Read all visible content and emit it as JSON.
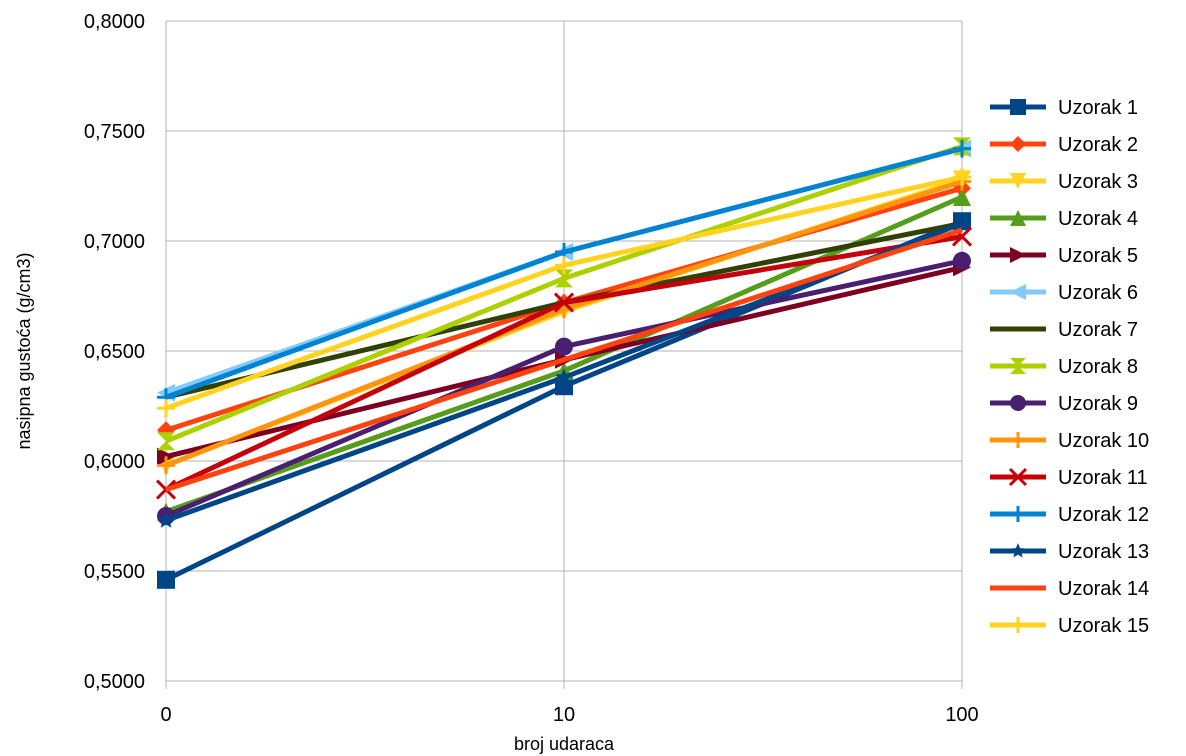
{
  "chart_data": {
    "type": "line",
    "title": "",
    "xlabel": "broj udaraca",
    "ylabel": "nasipna gustoća (g/cm3)",
    "categories": [
      "0",
      "10",
      "100"
    ],
    "ylim": [
      0.5,
      0.8
    ],
    "y_ticks": [
      "0,5000",
      "0,5500",
      "0,6000",
      "0,6500",
      "0,7000",
      "0,7500",
      "0,8000"
    ],
    "grid": true,
    "legend": "right",
    "series": [
      {
        "name": "Uzorak 1",
        "color": "#004586",
        "marker": "square",
        "values": [
          0.546,
          0.634,
          0.709
        ]
      },
      {
        "name": "Uzorak 2",
        "color": "#ff420e",
        "marker": "diamond",
        "values": [
          0.614,
          0.672,
          0.724
        ]
      },
      {
        "name": "Uzorak 3",
        "color": "#ffd320",
        "marker": "tri-down",
        "values": [
          0.598,
          0.668,
          0.728
        ]
      },
      {
        "name": "Uzorak 4",
        "color": "#579d1c",
        "marker": "tri-up",
        "values": [
          0.577,
          0.641,
          0.72
        ]
      },
      {
        "name": "Uzorak 5",
        "color": "#7e0021",
        "marker": "tri-right",
        "values": [
          0.602,
          0.646,
          0.688
        ]
      },
      {
        "name": "Uzorak 6",
        "color": "#83caff",
        "marker": "tri-left",
        "values": [
          0.631,
          0.695,
          0.742
        ]
      },
      {
        "name": "Uzorak 7",
        "color": "#314004",
        "marker": "bowtie",
        "values": [
          0.629,
          0.672,
          0.708
        ]
      },
      {
        "name": "Uzorak 8",
        "color": "#aecf00",
        "marker": "hourglass",
        "values": [
          0.609,
          0.683,
          0.743
        ]
      },
      {
        "name": "Uzorak 9",
        "color": "#4b1f6f",
        "marker": "circle",
        "values": [
          0.575,
          0.652,
          0.691
        ]
      },
      {
        "name": "Uzorak 10",
        "color": "#ff950e",
        "marker": "plus",
        "values": [
          0.598,
          0.669,
          0.727
        ]
      },
      {
        "name": "Uzorak 11",
        "color": "#c5000b",
        "marker": "x",
        "values": [
          0.587,
          0.672,
          0.702
        ]
      },
      {
        "name": "Uzorak 12",
        "color": "#0084d1",
        "marker": "plus",
        "values": [
          0.629,
          0.695,
          0.742
        ]
      },
      {
        "name": "Uzorak 13",
        "color": "#004586",
        "marker": "star",
        "values": [
          0.573,
          0.638,
          0.708
        ]
      },
      {
        "name": "Uzorak 14",
        "color": "#ff420e",
        "marker": "none",
        "values": [
          0.587,
          0.646,
          0.705
        ]
      },
      {
        "name": "Uzorak 15",
        "color": "#ffd320",
        "marker": "plus",
        "values": [
          0.624,
          0.689,
          0.729
        ]
      }
    ]
  }
}
